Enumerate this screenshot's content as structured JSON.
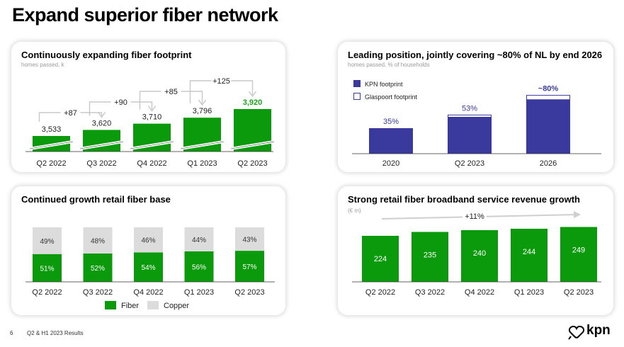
{
  "page": {
    "title": "Expand superior fiber network",
    "page_number": "6",
    "footer": "Q2 & H1 2023 Results",
    "logo_text": "kpn",
    "colors": {
      "green": "#0b9a0b",
      "navy": "#3a3a9e",
      "grey": "#dcdcdc",
      "highlight": "#19a119"
    }
  },
  "chart_data": [
    {
      "type": "bar",
      "title": "Continuously expanding fiber footprint",
      "subtitle": "homes passed, k",
      "categories": [
        "Q2 2022",
        "Q3 2022",
        "Q4 2022",
        "Q1 2023",
        "Q2 2023"
      ],
      "values": [
        3533,
        3620,
        3710,
        3796,
        3920
      ],
      "value_labels": [
        "3,533",
        "3,620",
        "3,710",
        "3,796",
        "3,920"
      ],
      "increments": [
        "+87",
        "+90",
        "+85",
        "+125"
      ],
      "axis_break": true,
      "highlight_last": true
    },
    {
      "type": "bar",
      "title": "Leading position, jointly covering ~80% of NL by end 2026",
      "subtitle": "homes passed, % of households",
      "categories": [
        "2020",
        "Q2 2023",
        "2026"
      ],
      "series": [
        {
          "name": "KPN footprint",
          "values": [
            35,
            50,
            74
          ]
        },
        {
          "name": "Glaspoort footprint",
          "values": [
            0,
            3,
            6
          ]
        }
      ],
      "total_labels": [
        "35%",
        "53%",
        "~80%"
      ],
      "legend_position": "top-left",
      "ylim": [
        0,
        80
      ]
    },
    {
      "type": "bar",
      "title": "Continued growth retail fiber base",
      "categories": [
        "Q2 2022",
        "Q3 2022",
        "Q4 2022",
        "Q1 2023",
        "Q2 2023"
      ],
      "stacked": true,
      "series": [
        {
          "name": "Fiber",
          "values": [
            51,
            52,
            54,
            56,
            57
          ]
        },
        {
          "name": "Copper",
          "values": [
            49,
            48,
            46,
            44,
            43
          ]
        }
      ],
      "legend_position": "bottom",
      "ylim": [
        0,
        100
      ]
    },
    {
      "type": "bar",
      "title": "Strong retail fiber broadband service revenue growth",
      "subtitle": "(€ m)",
      "categories": [
        "Q2 2022",
        "Q3 2022",
        "Q4 2022",
        "Q1 2023",
        "Q2 2023"
      ],
      "values": [
        224,
        235,
        240,
        244,
        249
      ],
      "growth_label": "+11%"
    }
  ]
}
